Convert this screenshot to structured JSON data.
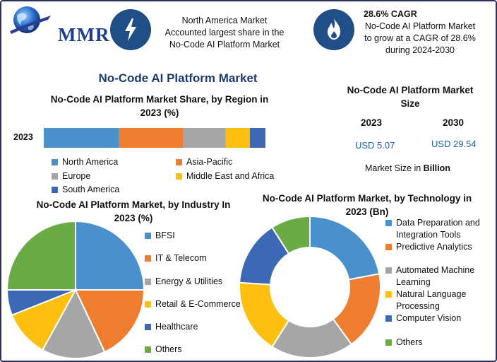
{
  "header": {
    "logo_text": "MMR",
    "info1": [
      "North America Market",
      "Accounted largest share in the",
      "No-Code AI Platform Market"
    ],
    "info2_title": "28.6% CAGR",
    "info2": [
      "No-Code AI Platform Market",
      "to grow at a CAGR of 28.6%",
      "during 2024-2030"
    ]
  },
  "main_title": "No-Code AI Platform Market",
  "size_panel": {
    "title": [
      "No-Code AI Platform Market",
      "Size"
    ],
    "year_a": "2023",
    "year_b": "2030",
    "value_a": "USD 5.07",
    "value_b": "USD 29.54",
    "note_prefix": "Market Size in ",
    "note_unit": "Billion"
  },
  "colors": {
    "blue": "#4a90cd",
    "orange": "#ee7d2f",
    "gray": "#a6a6a6",
    "yellow": "#fdc010",
    "navy": "#3c68b6",
    "green": "#6aab45"
  },
  "chart_data": [
    {
      "type": "bar",
      "title": "No-Code AI Platform Market Share, by Region in 2023 (%)",
      "categories": [
        "2023"
      ],
      "series": [
        {
          "name": "North America",
          "values": [
            34
          ],
          "color": "#4a90cd"
        },
        {
          "name": "Asia-Pacific",
          "values": [
            29
          ],
          "color": "#ee7d2f"
        },
        {
          "name": "Europe",
          "values": [
            19
          ],
          "color": "#a6a6a6"
        },
        {
          "name": "Middle East and Africa",
          "values": [
            11
          ],
          "color": "#fdc010"
        },
        {
          "name": "South America",
          "values": [
            7
          ],
          "color": "#3c68b6"
        }
      ],
      "stacked": true,
      "orientation": "horizontal",
      "legend": "bottom"
    },
    {
      "type": "pie",
      "title": "No-Code AI Platform Market, by Industry In 2023 (%)",
      "labels": [
        "BFSI",
        "IT & Telecom",
        "Energy & Utilities",
        "Retail & E-Commerce",
        "Healthcare",
        "Others"
      ],
      "values": [
        25,
        18,
        15,
        11,
        6,
        25
      ],
      "colors": [
        "#4a90cd",
        "#ee7d2f",
        "#a6a6a6",
        "#fdc010",
        "#3c68b6",
        "#6aab45"
      ],
      "legend": "right"
    },
    {
      "type": "pie",
      "donut": true,
      "title": "No-Code AI Platform Market, by Technology in 2023 (Bn)",
      "labels": [
        "Data Preparation and Integration Tools",
        "Predictive Analytics",
        "Automated Machine Learning",
        "Natural Language Processing",
        "Computer Vision",
        "Others"
      ],
      "values": [
        22,
        18,
        19,
        17,
        15,
        9
      ],
      "colors": [
        "#4a90cd",
        "#ee7d2f",
        "#a6a6a6",
        "#fdc010",
        "#3c68b6",
        "#6aab45"
      ],
      "legend": "right"
    }
  ]
}
